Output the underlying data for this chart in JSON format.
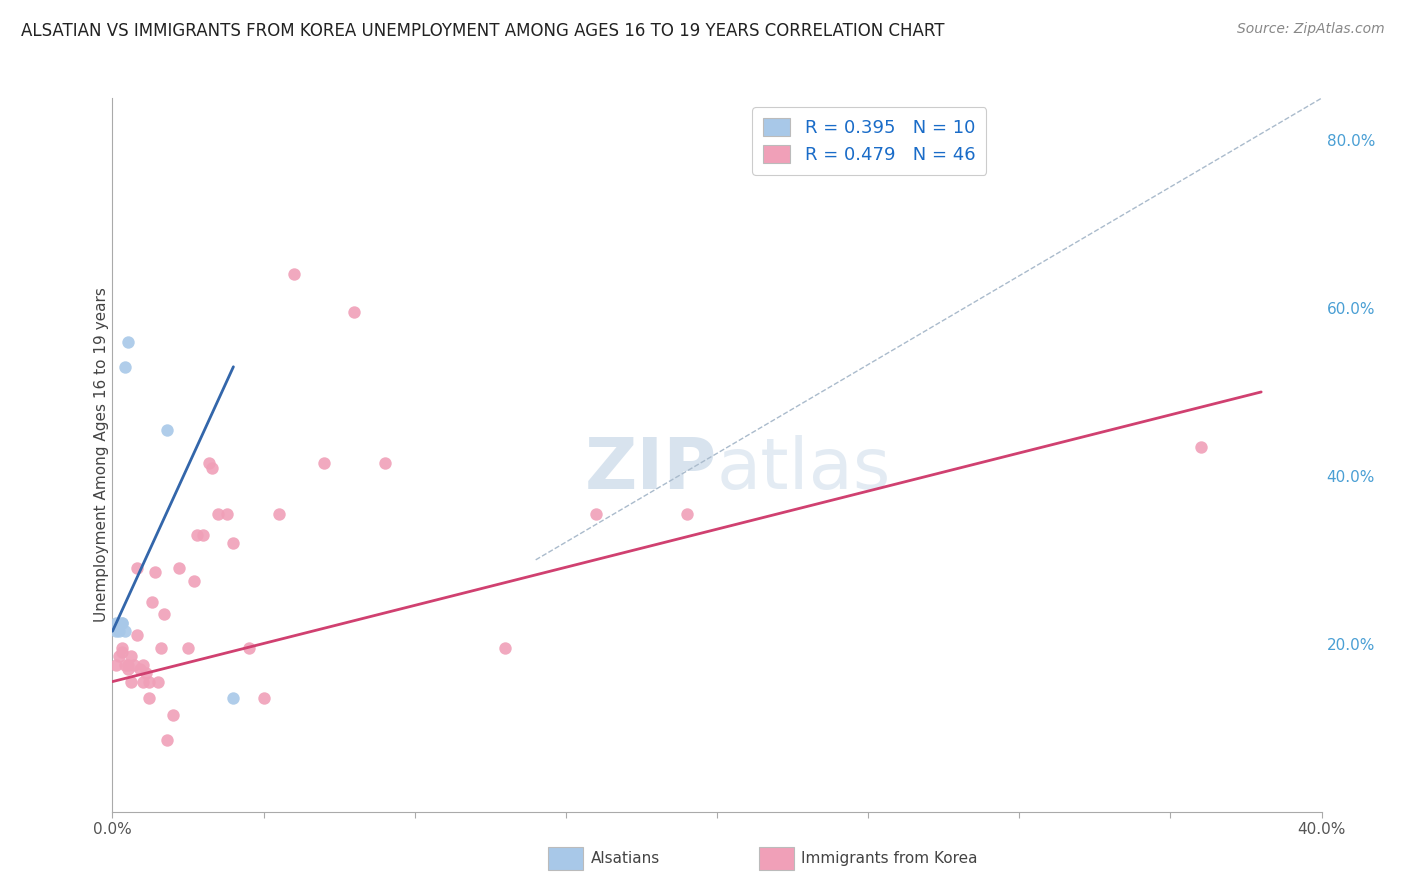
{
  "title": "ALSATIAN VS IMMIGRANTS FROM KOREA UNEMPLOYMENT AMONG AGES 16 TO 19 YEARS CORRELATION CHART",
  "source": "Source: ZipAtlas.com",
  "ylabel": "Unemployment Among Ages 16 to 19 years",
  "xlim": [
    0.0,
    0.4
  ],
  "ylim": [
    0.0,
    0.85
  ],
  "right_yticks": [
    0.2,
    0.4,
    0.6,
    0.8
  ],
  "right_ytick_labels": [
    "20.0%",
    "40.0%",
    "60.0%",
    "80.0%"
  ],
  "xtick_positions": [
    0.0,
    0.4
  ],
  "xtick_labels": [
    "0.0%",
    "40.0%"
  ],
  "blue_R": 0.395,
  "blue_N": 10,
  "pink_R": 0.479,
  "pink_N": 46,
  "blue_scatter_x": [
    0.001,
    0.001,
    0.002,
    0.003,
    0.003,
    0.004,
    0.004,
    0.005,
    0.018,
    0.04
  ],
  "blue_scatter_y": [
    0.215,
    0.225,
    0.215,
    0.225,
    0.225,
    0.215,
    0.53,
    0.56,
    0.455,
    0.135
  ],
  "pink_scatter_x": [
    0.001,
    0.002,
    0.003,
    0.003,
    0.004,
    0.005,
    0.005,
    0.006,
    0.006,
    0.007,
    0.008,
    0.008,
    0.009,
    0.01,
    0.01,
    0.011,
    0.012,
    0.012,
    0.013,
    0.014,
    0.015,
    0.016,
    0.017,
    0.018,
    0.02,
    0.022,
    0.025,
    0.027,
    0.028,
    0.03,
    0.032,
    0.033,
    0.035,
    0.038,
    0.04,
    0.045,
    0.05,
    0.055,
    0.06,
    0.07,
    0.08,
    0.09,
    0.13,
    0.16,
    0.19,
    0.36
  ],
  "pink_scatter_y": [
    0.175,
    0.185,
    0.19,
    0.195,
    0.175,
    0.17,
    0.175,
    0.155,
    0.185,
    0.175,
    0.21,
    0.29,
    0.17,
    0.155,
    0.175,
    0.165,
    0.155,
    0.135,
    0.25,
    0.285,
    0.155,
    0.195,
    0.235,
    0.085,
    0.115,
    0.29,
    0.195,
    0.275,
    0.33,
    0.33,
    0.415,
    0.41,
    0.355,
    0.355,
    0.32,
    0.195,
    0.135,
    0.355,
    0.64,
    0.415,
    0.595,
    0.415,
    0.195,
    0.355,
    0.355,
    0.435
  ],
  "blue_line_x": [
    0.0,
    0.04
  ],
  "blue_line_y": [
    0.215,
    0.53
  ],
  "pink_line_x": [
    0.0,
    0.38
  ],
  "pink_line_y": [
    0.155,
    0.5
  ],
  "dashed_line_x": [
    0.14,
    0.4
  ],
  "dashed_line_y": [
    0.3,
    0.85
  ],
  "blue_color": "#a8c8e8",
  "blue_line_color": "#3366aa",
  "pink_color": "#f0a0b8",
  "pink_line_color": "#d04070",
  "dashed_color": "#aabbcc",
  "watermark_zip": "ZIP",
  "watermark_atlas": "atlas",
  "background_color": "#ffffff",
  "legend_color": "#1a6cc8",
  "legend_N_color": "#cc3300"
}
